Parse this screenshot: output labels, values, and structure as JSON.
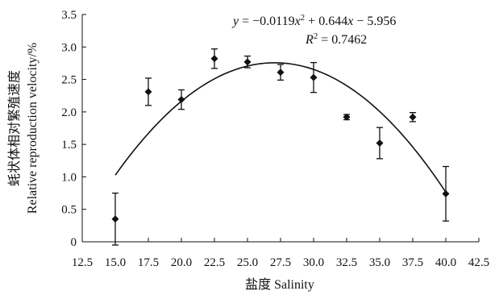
{
  "chart_data": {
    "type": "scatter",
    "title": "",
    "xlabel": "盐度 Salinity",
    "ylabel_line1": "蚝状体相对繁殖速度",
    "ylabel_line2": "Relative reproduction velocity/%",
    "xlim": [
      12.5,
      42.5
    ],
    "ylim": [
      0,
      3.5
    ],
    "x_ticks": [
      12.5,
      15.0,
      17.5,
      20.0,
      22.5,
      25.0,
      27.5,
      30.0,
      32.5,
      35.0,
      37.5,
      40.0,
      42.5
    ],
    "x_tick_labels": [
      "12.5",
      "15.0",
      "17.5",
      "20.0",
      "22.5",
      "25.0",
      "27.5",
      "30.0",
      "32.5",
      "35.0",
      "37.5",
      "40.0",
      "42.5"
    ],
    "y_ticks": [
      0,
      0.5,
      1.0,
      1.5,
      2.0,
      2.5,
      3.0,
      3.5
    ],
    "y_tick_labels": [
      "0",
      "0.5",
      "1.0",
      "1.5",
      "2.0",
      "2.5",
      "3.0",
      "3.5"
    ],
    "grid": false,
    "series": [
      {
        "marker": "diamond",
        "x": [
          15.0,
          17.5,
          20.0,
          22.5,
          25.0,
          27.5,
          30.0,
          32.5,
          35.0,
          37.5,
          40.0
        ],
        "y": [
          0.35,
          2.31,
          2.19,
          2.82,
          2.77,
          2.61,
          2.53,
          1.92,
          1.52,
          1.92,
          0.74
        ],
        "error": [
          0.4,
          0.21,
          0.15,
          0.15,
          0.09,
          0.12,
          0.23,
          0.04,
          0.24,
          0.07,
          0.42
        ]
      }
    ],
    "trendline": {
      "type": "polynomial",
      "coefficients": [
        -0.0119,
        0.644,
        -5.956
      ],
      "x_range": [
        15.0,
        40.0
      ]
    },
    "annotations": {
      "equation": {
        "y": "y",
        "eq": " = −0.0119",
        "x1": "x",
        "sup": "2",
        "mid": " + 0.644",
        "x2": "x",
        "rest": " −  5.956"
      },
      "r2": {
        "r": "R",
        "sup": "2",
        "rest": " = 0.7462"
      }
    },
    "colors": {
      "marker": "#111111",
      "axis": "#111111",
      "curve": "#111111"
    }
  }
}
